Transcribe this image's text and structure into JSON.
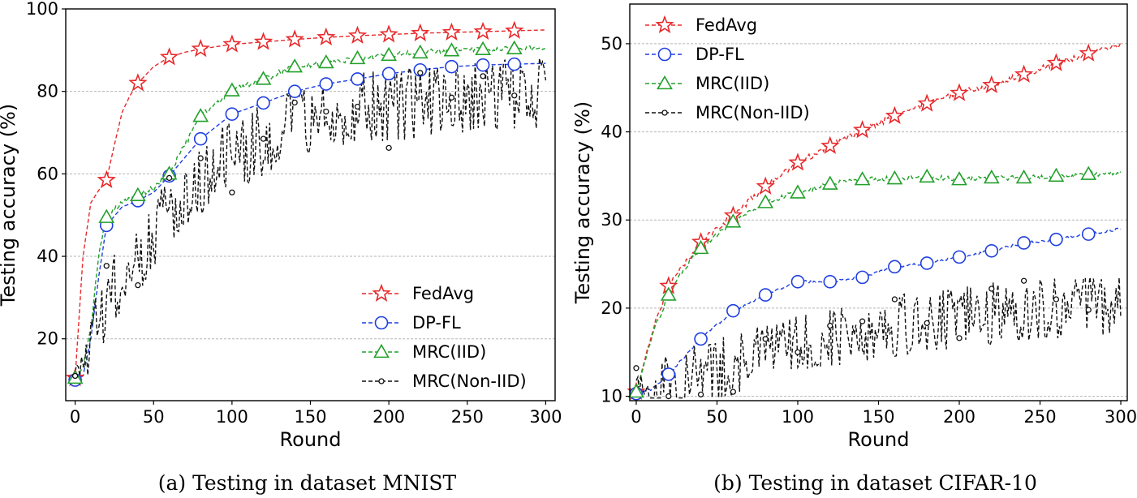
{
  "chart_data": [
    {
      "type": "line",
      "caption": "(a)  Testing in dataset MNIST",
      "xlabel": "Round",
      "ylabel": "Testing accuracy (%)",
      "xlim": [
        -6,
        306
      ],
      "ylim": [
        5,
        100
      ],
      "xticks": [
        0,
        50,
        100,
        150,
        200,
        250,
        300
      ],
      "yticks": [
        20,
        40,
        60,
        80,
        100
      ],
      "grid_y": true,
      "legend_position": "lower-right",
      "series": [
        {
          "name": "FedAvg",
          "color": "#e8282a",
          "marker": "star",
          "noise": 0,
          "x": [
            0,
            5,
            10,
            15,
            20,
            25,
            30,
            35,
            40,
            50,
            60,
            70,
            80,
            100,
            120,
            140,
            160,
            180,
            200,
            220,
            240,
            260,
            280,
            300
          ],
          "y": [
            10.5,
            40,
            53,
            56,
            58.5,
            67,
            75,
            79,
            82,
            86,
            88.3,
            89.5,
            90.3,
            91.4,
            92,
            92.6,
            93.1,
            93.5,
            93.8,
            94.1,
            94.3,
            94.5,
            94.7,
            94.9
          ]
        },
        {
          "name": "DP-FL",
          "color": "#1f3fe0",
          "marker": "circle",
          "noise": 0,
          "x": [
            0,
            5,
            10,
            15,
            20,
            30,
            40,
            50,
            60,
            70,
            80,
            100,
            120,
            140,
            160,
            180,
            200,
            220,
            240,
            260,
            280,
            300
          ],
          "y": [
            10,
            11,
            20,
            35,
            47.5,
            52,
            53.5,
            55.5,
            59.5,
            64,
            68.5,
            74.5,
            77.2,
            80,
            81.8,
            83,
            84.3,
            85.2,
            86,
            86.4,
            86.6,
            86.8
          ]
        },
        {
          "name": "MRC(IID)",
          "color": "#22a02a",
          "marker": "triangle",
          "noise": 0.7,
          "x": [
            0,
            5,
            10,
            15,
            20,
            30,
            40,
            50,
            60,
            70,
            80,
            100,
            120,
            140,
            160,
            180,
            200,
            220,
            240,
            260,
            280,
            300
          ],
          "y": [
            10.5,
            13,
            23,
            40,
            49.5,
            53,
            54.8,
            56.5,
            60,
            67,
            74,
            80.2,
            83,
            86,
            87,
            88,
            88.8,
            89.4,
            89.9,
            90.2,
            90.4,
            90.7
          ]
        },
        {
          "name": "MRC(Non-IID)",
          "color": "#111111",
          "marker": "smallcircle",
          "noise": 9,
          "x": [
            0,
            10,
            20,
            30,
            40,
            50,
            60,
            80,
            100,
            120,
            140,
            160,
            180,
            200,
            220,
            240,
            260,
            280,
            300
          ],
          "y": [
            10.5,
            18,
            29,
            34,
            40,
            46,
            51,
            59,
            64,
            68,
            72,
            74,
            75.5,
            76.5,
            77.5,
            78.5,
            79,
            79.5,
            80
          ],
          "marker_points": [
            [
              0,
              11
            ],
            [
              20,
              37.7
            ],
            [
              40,
              33
            ],
            [
              60,
              59
            ],
            [
              80,
              63.8
            ],
            [
              100,
              55.5
            ],
            [
              120,
              68.5
            ],
            [
              140,
              77.3
            ],
            [
              160,
              75.1
            ],
            [
              180,
              76.3
            ],
            [
              200,
              66.3
            ],
            [
              220,
              84.5
            ],
            [
              240,
              78.5
            ],
            [
              260,
              83.7
            ],
            [
              280,
              79
            ]
          ]
        }
      ]
    },
    {
      "type": "line",
      "caption": "(b)  Testing in dataset CIFAR-10",
      "xlabel": "Round",
      "ylabel": "Testing accuracy (%)",
      "xlim": [
        -4,
        304
      ],
      "ylim": [
        9.5,
        54.5
      ],
      "xticks": [
        0,
        50,
        100,
        150,
        200,
        250,
        300
      ],
      "yticks": [
        10,
        20,
        30,
        40,
        50
      ],
      "grid_y": true,
      "legend_position": "upper-left",
      "series": [
        {
          "name": "FedAvg",
          "color": "#e8282a",
          "marker": "star",
          "noise": 0.35,
          "x": [
            0,
            10,
            20,
            30,
            40,
            60,
            80,
            100,
            120,
            140,
            160,
            180,
            200,
            220,
            240,
            260,
            280,
            300
          ],
          "y": [
            10.5,
            17.5,
            22.5,
            25,
            27.5,
            30.5,
            33.8,
            36.5,
            38.4,
            40.2,
            41.8,
            43.2,
            44.4,
            45.3,
            46.5,
            47.8,
            48.9,
            49.9
          ]
        },
        {
          "name": "DP-FL",
          "color": "#1f3fe0",
          "marker": "circle",
          "noise": 0.15,
          "x": [
            0,
            10,
            20,
            30,
            40,
            60,
            80,
            100,
            120,
            140,
            160,
            180,
            200,
            220,
            240,
            260,
            280,
            300
          ],
          "y": [
            10.3,
            10.8,
            12.5,
            14.5,
            16.5,
            19.7,
            21.5,
            23,
            23,
            23.5,
            24.7,
            25.1,
            25.8,
            26.5,
            27.4,
            27.8,
            28.4,
            29
          ]
        },
        {
          "name": "MRC(IID)",
          "color": "#22a02a",
          "marker": "triangle",
          "noise": 0.3,
          "x": [
            0,
            10,
            20,
            30,
            40,
            60,
            80,
            100,
            120,
            140,
            160,
            180,
            200,
            220,
            240,
            260,
            280,
            300
          ],
          "y": [
            10.5,
            17,
            21.5,
            24.5,
            26.8,
            29.8,
            32,
            33.1,
            34.1,
            34.6,
            34.7,
            34.9,
            34.6,
            34.8,
            34.8,
            35,
            35.2,
            35.3
          ]
        },
        {
          "name": "MRC(Non-IID)",
          "color": "#111111",
          "marker": "smallcircle",
          "noise": 3.6,
          "x": [
            0,
            20,
            40,
            60,
            80,
            100,
            120,
            140,
            160,
            180,
            200,
            220,
            240,
            260,
            280,
            300
          ],
          "y": [
            11,
            11.5,
            12.5,
            13.5,
            15,
            16,
            16.8,
            17.5,
            18,
            18.5,
            19,
            19.3,
            19.6,
            20,
            20.3,
            20.5
          ],
          "marker_points": [
            [
              0,
              13.2
            ],
            [
              20,
              10
            ],
            [
              40,
              10.2
            ],
            [
              60,
              10.5
            ],
            [
              80,
              16.5
            ],
            [
              100,
              15
            ],
            [
              120,
              18
            ],
            [
              140,
              18.5
            ],
            [
              160,
              21
            ],
            [
              180,
              18.3
            ],
            [
              200,
              16.6
            ],
            [
              220,
              22.2
            ],
            [
              240,
              23.1
            ],
            [
              260,
              21
            ],
            [
              280,
              19.8
            ]
          ]
        }
      ]
    }
  ]
}
